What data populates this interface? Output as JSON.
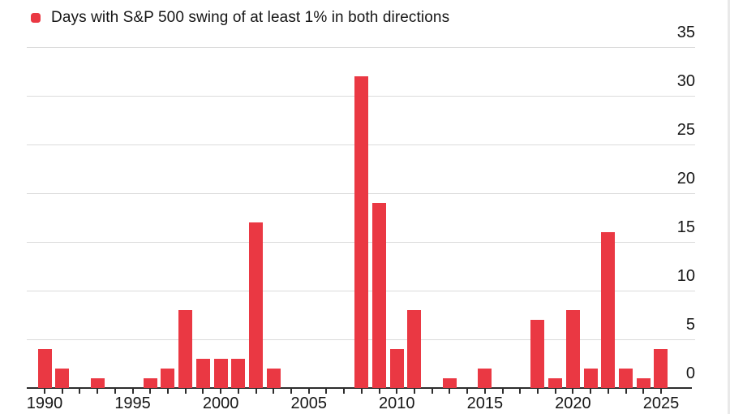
{
  "legend": {
    "marker_color": "#ea3843",
    "label": "Days with S&P 500 swing of at least 1% in both directions"
  },
  "chart_data": {
    "type": "bar",
    "title": "Days with S&P 500 swing of at least 1% in both directions",
    "categories": [
      1990,
      1991,
      1992,
      1993,
      1994,
      1995,
      1996,
      1997,
      1998,
      1999,
      2000,
      2001,
      2002,
      2003,
      2004,
      2005,
      2006,
      2007,
      2008,
      2009,
      2010,
      2011,
      2012,
      2013,
      2014,
      2015,
      2016,
      2017,
      2018,
      2019,
      2020,
      2021,
      2022,
      2023,
      2024,
      2025
    ],
    "values": [
      4,
      2,
      0,
      1,
      0,
      0,
      1,
      2,
      8,
      3,
      3,
      3,
      17,
      2,
      0,
      0,
      0,
      0,
      32,
      19,
      4,
      8,
      0,
      1,
      0,
      2,
      0,
      0,
      7,
      1,
      8,
      2,
      16,
      2,
      1,
      4
    ],
    "xlabel": "",
    "ylabel": "",
    "ylim": [
      0,
      35
    ],
    "y_ticks": [
      0,
      5,
      10,
      15,
      20,
      25,
      30,
      35
    ],
    "x_tick_labels": [
      "1990",
      "1995",
      "2000",
      "2005",
      "2010",
      "2015",
      "2020",
      "2025"
    ],
    "grid": "horizontal-only",
    "legend_position": "top-left",
    "y_axis_side": "right",
    "bar_color": "#ea3843",
    "grid_color": "#dbdbdb",
    "axis_color": "#2d2d2d",
    "label_color": "#161616"
  }
}
